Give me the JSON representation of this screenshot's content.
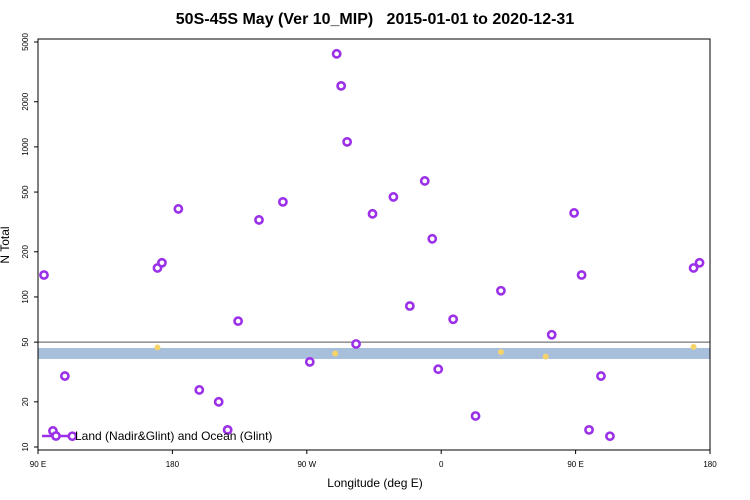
{
  "chart_data": {
    "type": "scatter",
    "title": "50S-45S May (Ver 10_MIP)   2015-01-01 to 2020-12-31",
    "xlabel": "Longitude (deg E)",
    "ylabel": "N Total",
    "xlim": [
      -270,
      180
    ],
    "xticks": [
      {
        "value": -270,
        "label": "90 E"
      },
      {
        "value": -180,
        "label": "180"
      },
      {
        "value": -90,
        "label": "90 W"
      },
      0,
      {
        "value": 90,
        "label": "90 E"
      },
      180
    ],
    "ylim": [
      10,
      5000
    ],
    "log_y": true,
    "yticks": [
      10,
      20,
      50,
      100,
      200,
      500,
      1000,
      2000,
      5000
    ],
    "reference_line": {
      "value": 50,
      "color": "#777777"
    },
    "band": {
      "range": [
        38.6,
        45.7
      ],
      "color": "#a8bfdc"
    },
    "highlights": {
      "color": "#f5d36b",
      "x": [
        -190,
        -71,
        40,
        70,
        169
      ],
      "values": [
        46,
        42,
        43,
        40,
        46.5
      ]
    },
    "legend": "bottomleft",
    "series": [
      {
        "name": "Land (Nadir&Glint) and Ocean (Glint)",
        "color": "#9b30e8",
        "x": [
          -266,
          -260,
          -252,
          -247,
          -190,
          -187,
          -176,
          -162,
          -149,
          -143,
          -136,
          -122,
          -106,
          -88,
          -70,
          -67,
          -63,
          -57,
          -46,
          -32,
          -21,
          -11,
          -6,
          -2,
          8,
          23,
          40,
          74,
          89,
          94,
          99,
          107,
          113,
          169,
          173
        ],
        "values": [
          140,
          12.8,
          29.7,
          11.8,
          156,
          169,
          386,
          24,
          20,
          13,
          69,
          326,
          430,
          36.9,
          4170,
          2550,
          1080,
          48.6,
          358,
          464,
          87,
          593,
          244,
          33,
          71,
          16.1,
          110,
          56,
          363,
          140,
          13,
          29.7,
          11.8,
          156,
          169
        ]
      }
    ]
  }
}
